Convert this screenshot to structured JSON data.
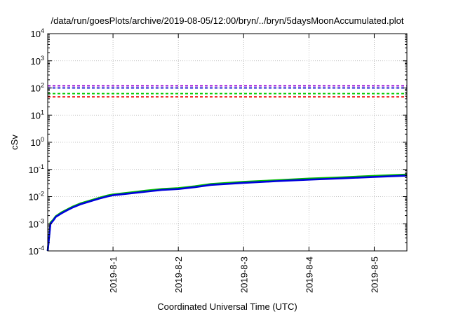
{
  "chart_data": {
    "type": "line",
    "title": "/data/run/goesPlots/archive/2019-08-05/12:00/bryn/../bryn/5daysMoonAccumulated.plot",
    "xlabel": "Coordinated Universal Time (UTC)",
    "ylabel": "cSv",
    "y_scale": "log",
    "ylim": [
      0.0001,
      10000
    ],
    "y_ticks": [
      {
        "value": 0.0001,
        "base": "10",
        "exp": "-4"
      },
      {
        "value": 0.001,
        "base": "10",
        "exp": "-3"
      },
      {
        "value": 0.01,
        "base": "10",
        "exp": "-2"
      },
      {
        "value": 0.1,
        "base": "10",
        "exp": "-1"
      },
      {
        "value": 1,
        "base": "10",
        "exp": "0"
      },
      {
        "value": 10,
        "base": "10",
        "exp": "1"
      },
      {
        "value": 100,
        "base": "10",
        "exp": "2"
      },
      {
        "value": 1000,
        "base": "10",
        "exp": "3"
      },
      {
        "value": 10000,
        "base": "10",
        "exp": "4"
      }
    ],
    "xlim": [
      "2019-07-31 00:00",
      "2019-08-05 12:00"
    ],
    "x_ticks": [
      "2019-8-1",
      "2019-8-2",
      "2019-8-3",
      "2019-8-4",
      "2019-8-5"
    ],
    "grid": true,
    "reference_lines": [
      {
        "value": 120,
        "color": "#9400d3"
      },
      {
        "value": 100,
        "color": "#0000cc"
      },
      {
        "value": 62,
        "color": "#00cc00"
      },
      {
        "value": 47,
        "color": "#ee0000"
      }
    ],
    "series": [
      {
        "color": "#00bb00",
        "x": [
          "2019-07-31 00:00",
          "2019-07-31 01:00",
          "2019-07-31 02:00",
          "2019-07-31 03:00",
          "2019-07-31 05:00",
          "2019-07-31 07:00",
          "2019-07-31 09:00",
          "2019-07-31 12:00",
          "2019-07-31 16:00",
          "2019-07-31 19:00",
          "2019-07-31 22:00",
          "2019-08-01 00:00",
          "2019-08-01 06:00",
          "2019-08-01 12:00",
          "2019-08-01 18:00",
          "2019-08-02 00:00",
          "2019-08-02 06:00",
          "2019-08-02 12:00",
          "2019-08-03 00:00",
          "2019-08-03 12:00",
          "2019-08-04 00:00",
          "2019-08-04 12:00",
          "2019-08-05 00:00",
          "2019-08-05 12:00"
        ],
        "y": [
          0.0001,
          0.0011,
          0.0014,
          0.0019,
          0.0026,
          0.0033,
          0.0042,
          0.0056,
          0.0074,
          0.0091,
          0.011,
          0.012,
          0.014,
          0.0165,
          0.019,
          0.0205,
          0.024,
          0.029,
          0.035,
          0.04,
          0.046,
          0.051,
          0.058,
          0.065
        ]
      },
      {
        "color": "#0000dd",
        "x": [
          "2019-07-31 00:00",
          "2019-07-31 01:00",
          "2019-07-31 02:00",
          "2019-07-31 03:00",
          "2019-07-31 05:00",
          "2019-07-31 07:00",
          "2019-07-31 09:00",
          "2019-07-31 12:00",
          "2019-07-31 16:00",
          "2019-07-31 19:00",
          "2019-07-31 22:00",
          "2019-08-01 00:00",
          "2019-08-01 06:00",
          "2019-08-01 12:00",
          "2019-08-01 18:00",
          "2019-08-02 00:00",
          "2019-08-02 06:00",
          "2019-08-02 12:00",
          "2019-08-03 00:00",
          "2019-08-03 12:00",
          "2019-08-04 00:00",
          "2019-08-04 12:00",
          "2019-08-05 00:00",
          "2019-08-05 12:00"
        ],
        "y": [
          0.0001,
          0.001,
          0.0013,
          0.0018,
          0.0024,
          0.0031,
          0.0039,
          0.0052,
          0.0069,
          0.0085,
          0.0102,
          0.0112,
          0.013,
          0.0152,
          0.0176,
          0.019,
          0.0222,
          0.027,
          0.032,
          0.037,
          0.042,
          0.047,
          0.053,
          0.059
        ]
      }
    ]
  }
}
